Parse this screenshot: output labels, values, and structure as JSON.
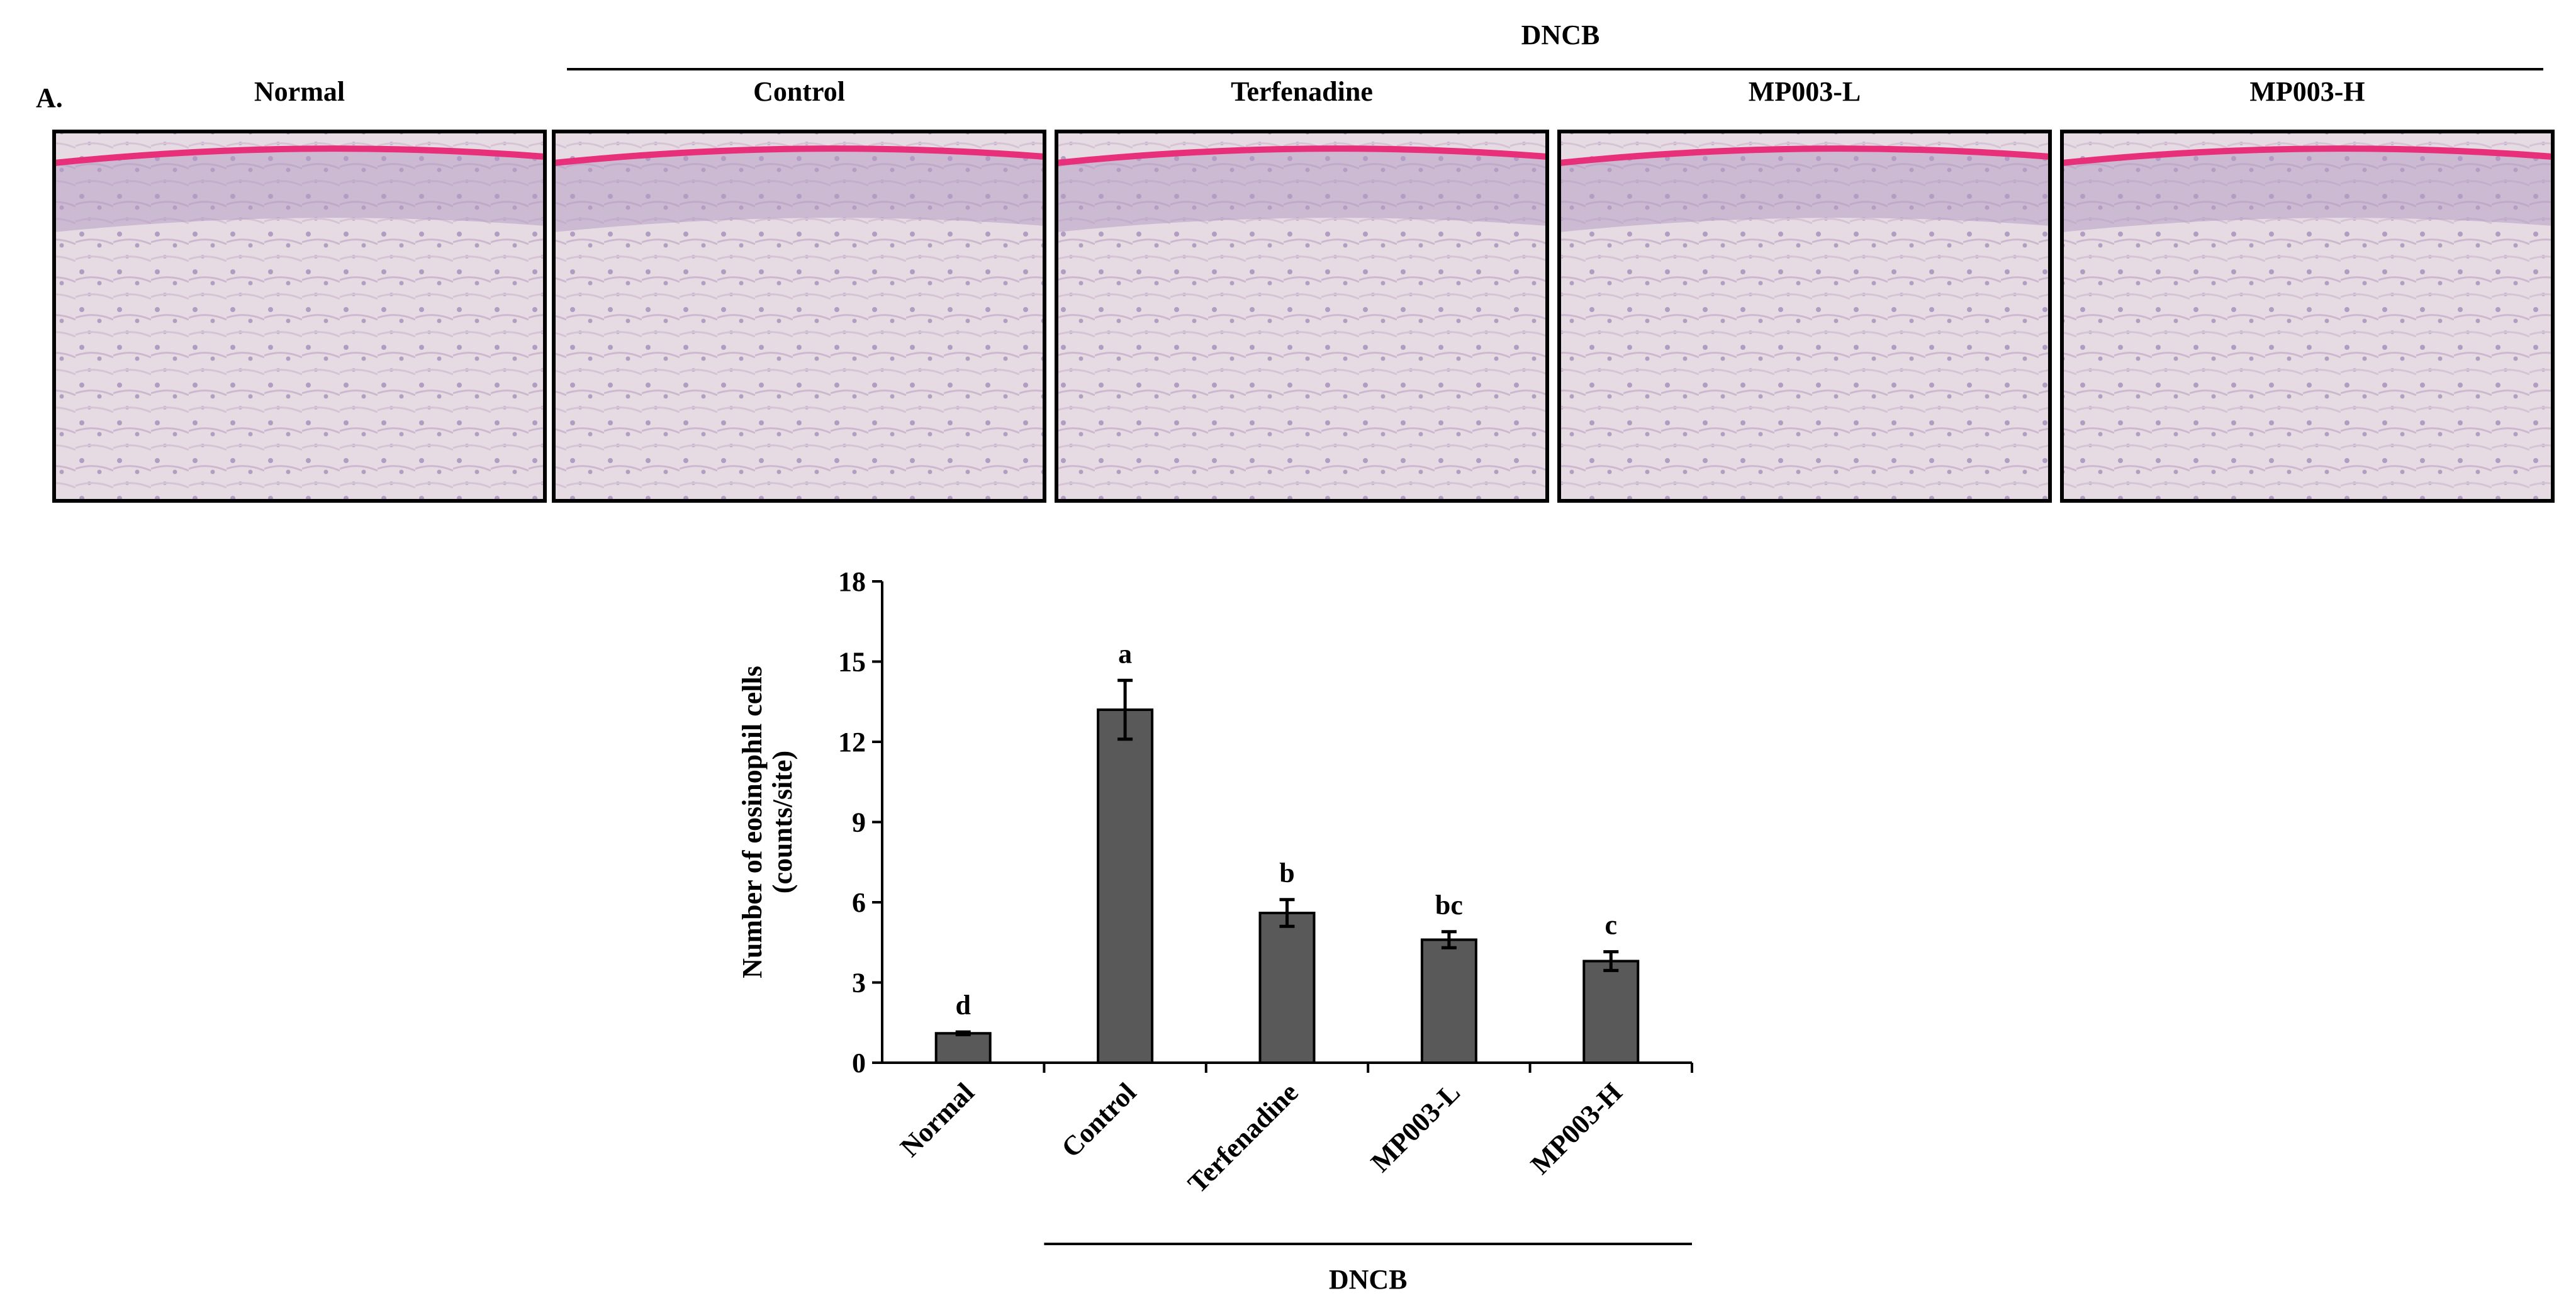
{
  "figure": {
    "panel_label": "A.",
    "group_label": "DNCB",
    "panels": [
      "Normal",
      "Control",
      "Terfenadine",
      "MP003-L",
      "MP003-H"
    ]
  },
  "chart_data": {
    "type": "bar",
    "ylabel": [
      "Number of eosinophil cells",
      "(counts/site)"
    ],
    "categories": [
      "Normal",
      "Control",
      "Terfenadine",
      "MP003-L",
      "MP003-H"
    ],
    "values": [
      1.1,
      13.2,
      5.6,
      4.6,
      3.8
    ],
    "errors": [
      0.05,
      1.1,
      0.5,
      0.3,
      0.35
    ],
    "significance": [
      "d",
      "a",
      "b",
      "bc",
      "c"
    ],
    "group_label": "DNCB",
    "color": "#595959",
    "ylim": [
      0,
      18
    ],
    "yticks": [
      0,
      3,
      6,
      9,
      12,
      15,
      18
    ]
  }
}
